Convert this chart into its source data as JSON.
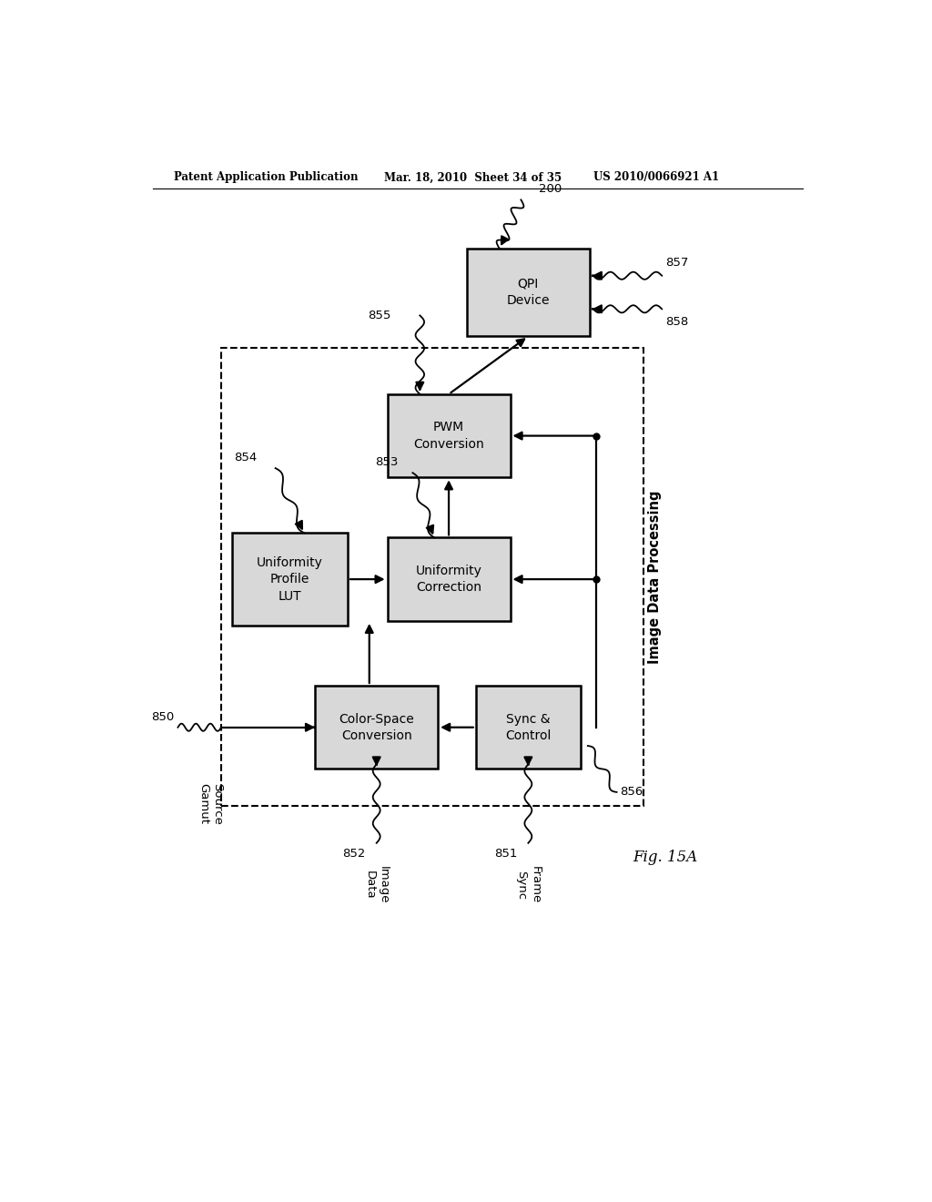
{
  "title_left": "Patent Application Publication",
  "title_mid": "Mar. 18, 2010  Sheet 34 of 35",
  "title_right": "US 2010/0066921 A1",
  "fig_label": "Fig. 15A",
  "bg_color": "#ffffff"
}
